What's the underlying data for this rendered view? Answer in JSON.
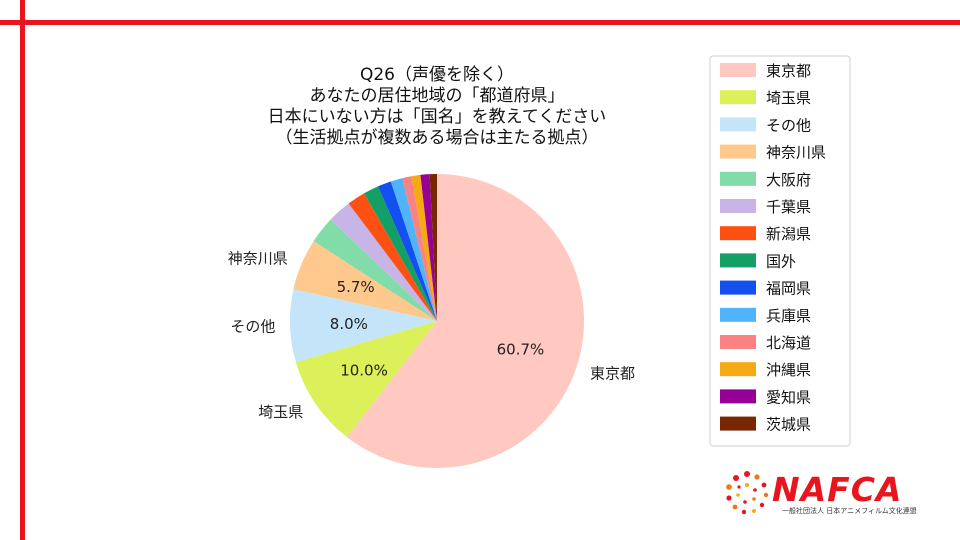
{
  "chart_data": {
    "type": "pie",
    "title_lines": [
      "Q26（声優を除く）",
      "あなたの居住地域の「都道府県」",
      "日本にいない方は「国名」を教えてください",
      "（生活拠点が複数ある場合は主たる拠点）"
    ],
    "slices": [
      {
        "label": "東京都",
        "value": 60.7,
        "color": "#ffc8c0",
        "pct_text": "60.7%"
      },
      {
        "label": "埼玉県",
        "value": 10.0,
        "color": "#dcf05a",
        "pct_text": "10.0%"
      },
      {
        "label": "その他",
        "value": 8.0,
        "color": "#c4e4fa",
        "pct_text": "8.0%"
      },
      {
        "label": "神奈川県",
        "value": 5.7,
        "color": "#ffc88c",
        "pct_text": "5.7%"
      },
      {
        "label": "大阪府",
        "value": 3.0,
        "color": "#82dcaa",
        "pct_text": ""
      },
      {
        "label": "千葉県",
        "value": 2.6,
        "color": "#c8b4e6",
        "pct_text": ""
      },
      {
        "label": "新潟県",
        "value": 2.0,
        "color": "#ff5014",
        "pct_text": ""
      },
      {
        "label": "国外",
        "value": 1.7,
        "color": "#14a064",
        "pct_text": ""
      },
      {
        "label": "福岡県",
        "value": 1.5,
        "color": "#1450f0",
        "pct_text": ""
      },
      {
        "label": "兵庫県",
        "value": 1.3,
        "color": "#50b4fa",
        "pct_text": ""
      },
      {
        "label": "北海道",
        "value": 1.0,
        "color": "#fa8282",
        "pct_text": ""
      },
      {
        "label": "沖縄県",
        "value": 1.0,
        "color": "#f5aa14",
        "pct_text": ""
      },
      {
        "label": "愛知県",
        "value": 1.0,
        "color": "#960096",
        "pct_text": ""
      },
      {
        "label": "茨城県",
        "value": 0.8,
        "color": "#782800",
        "pct_text": ""
      }
    ],
    "outer_labels": [
      "東京都",
      "埼玉県",
      "その他",
      "神奈川県"
    ],
    "legend_position": "right"
  },
  "logo": {
    "word": "NAFCA",
    "subtitle": "一般社団法人 日本アニメフィルム文化連盟"
  },
  "colors": {
    "frame": "#e8141e",
    "logo": "#e8141e"
  }
}
